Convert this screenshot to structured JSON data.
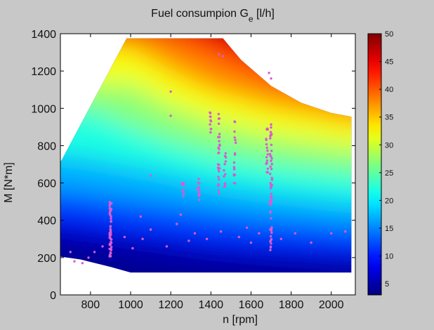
{
  "chart_data": {
    "type": "heatmap",
    "title": "Fuel consumpion G",
    "title_subscript": "e",
    "title_suffix": " [l/h]",
    "xlabel": "n [rpm]",
    "ylabel": "M [N*m]",
    "xlim": [
      650,
      2120
    ],
    "ylim": [
      0,
      1400
    ],
    "xticks": [
      800,
      1000,
      1200,
      1400,
      1600,
      1800,
      2000
    ],
    "yticks": [
      0,
      200,
      400,
      600,
      800,
      1000,
      1200,
      1400
    ],
    "colorbar": {
      "min": 3,
      "max": 50,
      "ticks": [
        5,
        10,
        15,
        20,
        25,
        30,
        35,
        40,
        45,
        50
      ],
      "colormap": "jet"
    },
    "grid": false,
    "envelope": {
      "upper": [
        [
          650,
          710
        ],
        [
          980,
          1375
        ],
        [
          1460,
          1375
        ],
        [
          1550,
          1260
        ],
        [
          1700,
          1120
        ],
        [
          1850,
          1030
        ],
        [
          2000,
          975
        ],
        [
          2100,
          955
        ]
      ],
      "lower": [
        [
          650,
          205
        ],
        [
          750,
          190
        ],
        [
          900,
          150
        ],
        [
          1000,
          120
        ],
        [
          2100,
          120
        ]
      ]
    },
    "surface_levels": [
      {
        "value": 8,
        "points": [
          [
            650,
            320
          ],
          [
            800,
            300
          ],
          [
            1000,
            270
          ],
          [
            1200,
            240
          ],
          [
            1400,
            215
          ],
          [
            1700,
            190
          ],
          [
            2100,
            170
          ]
        ]
      },
      {
        "value": 12,
        "points": [
          [
            650,
            420
          ],
          [
            800,
            400
          ],
          [
            1000,
            360
          ],
          [
            1200,
            330
          ],
          [
            1400,
            300
          ],
          [
            1700,
            270
          ],
          [
            2100,
            240
          ]
        ]
      },
      {
        "value": 17,
        "points": [
          [
            650,
            560
          ],
          [
            800,
            540
          ],
          [
            1000,
            510
          ],
          [
            1200,
            480
          ],
          [
            1400,
            450
          ],
          [
            1700,
            410
          ],
          [
            2100,
            370
          ]
        ]
      },
      {
        "value": 22,
        "points": [
          [
            650,
            750
          ],
          [
            800,
            730
          ],
          [
            1000,
            690
          ],
          [
            1200,
            650
          ],
          [
            1400,
            600
          ],
          [
            1700,
            550
          ],
          [
            2100,
            500
          ]
        ]
      },
      {
        "value": 27,
        "points": [
          [
            800,
            990
          ],
          [
            1000,
            900
          ],
          [
            1200,
            820
          ],
          [
            1400,
            760
          ],
          [
            1700,
            700
          ],
          [
            2100,
            650
          ]
        ]
      },
      {
        "value": 32,
        "points": [
          [
            1000,
            1130
          ],
          [
            1200,
            1010
          ],
          [
            1400,
            930
          ],
          [
            1700,
            850
          ],
          [
            2100,
            790
          ]
        ]
      },
      {
        "value": 38,
        "points": [
          [
            1000,
            1330
          ],
          [
            1200,
            1200
          ],
          [
            1400,
            1100
          ],
          [
            1700,
            1010
          ],
          [
            2100,
            930
          ]
        ]
      },
      {
        "value": 44,
        "points": [
          [
            1150,
            1400
          ],
          [
            1300,
            1340
          ],
          [
            1450,
            1270
          ],
          [
            1700,
            1160
          ],
          [
            2100,
            1060
          ]
        ]
      },
      {
        "value": 49,
        "points": [
          [
            1300,
            1450
          ],
          [
            1500,
            1380
          ],
          [
            1700,
            1300
          ],
          [
            2100,
            1180
          ]
        ]
      }
    ],
    "measured_points": {
      "clusters": [
        {
          "x": 900,
          "y_min": 200,
          "y_max": 500,
          "count": 60
        },
        {
          "x": 1700,
          "y_min": 240,
          "y_max": 920,
          "count": 55
        },
        {
          "x": 1680,
          "y_min": 650,
          "y_max": 900,
          "count": 18
        },
        {
          "x": 1440,
          "y_min": 520,
          "y_max": 980,
          "count": 28
        },
        {
          "x": 1470,
          "y_min": 580,
          "y_max": 760,
          "count": 14
        },
        {
          "x": 1520,
          "y_min": 540,
          "y_max": 950,
          "count": 18
        },
        {
          "x": 1340,
          "y_min": 500,
          "y_max": 640,
          "count": 14
        },
        {
          "x": 1260,
          "y_min": 520,
          "y_max": 620,
          "count": 8
        },
        {
          "x": 1400,
          "y_min": 860,
          "y_max": 980,
          "count": 10
        }
      ],
      "scatter": [
        [
          700,
          230
        ],
        [
          720,
          180
        ],
        [
          760,
          170
        ],
        [
          790,
          200
        ],
        [
          820,
          230
        ],
        [
          860,
          260
        ],
        [
          970,
          310
        ],
        [
          1010,
          250
        ],
        [
          1060,
          300
        ],
        [
          1100,
          350
        ],
        [
          1180,
          260
        ],
        [
          1200,
          1090
        ],
        [
          1230,
          380
        ],
        [
          1290,
          290
        ],
        [
          1320,
          330
        ],
        [
          1380,
          300
        ],
        [
          1440,
          1290
        ],
        [
          1460,
          1280
        ],
        [
          1450,
          340
        ],
        [
          1540,
          310
        ],
        [
          1580,
          360
        ],
        [
          1600,
          280
        ],
        [
          1640,
          330
        ],
        [
          1690,
          1190
        ],
        [
          1700,
          1160
        ],
        [
          1750,
          300
        ],
        [
          1820,
          330
        ],
        [
          1900,
          280
        ],
        [
          2000,
          330
        ],
        [
          2070,
          340
        ],
        [
          1200,
          960
        ],
        [
          1100,
          640
        ],
        [
          1050,
          420
        ],
        [
          1250,
          430
        ]
      ]
    }
  }
}
